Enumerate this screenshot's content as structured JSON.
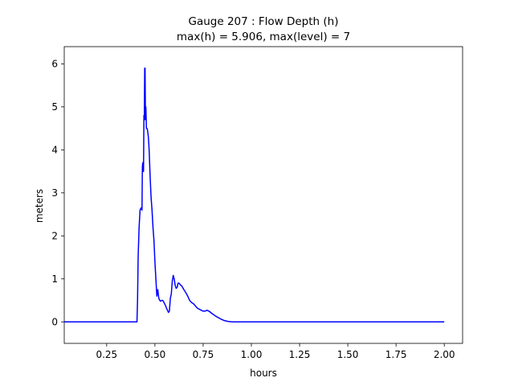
{
  "chart_data": {
    "type": "line",
    "title_line1": "Gauge 207 : Flow Depth (h)",
    "title_line2": "max(h) =   5.906,    max(level) = 7",
    "xlabel": "hours",
    "ylabel": "meters",
    "xlim": [
      0.03,
      2.095
    ],
    "ylim": [
      -0.5,
      6.4
    ],
    "xticks": [
      0.25,
      0.5,
      0.75,
      1.0,
      1.25,
      1.5,
      1.75,
      2.0
    ],
    "xtick_labels": [
      "0.25",
      "0.50",
      "0.75",
      "1.00",
      "1.25",
      "1.50",
      "1.75",
      "2.00"
    ],
    "yticks": [
      0,
      1,
      2,
      3,
      4,
      5,
      6
    ],
    "ytick_labels": [
      "0",
      "1",
      "2",
      "3",
      "4",
      "5",
      "6"
    ],
    "grid": false,
    "series": [
      {
        "color": "#0000ff",
        "x": [
          0.03,
          0.1,
          0.2,
          0.3,
          0.38,
          0.407,
          0.41,
          0.413,
          0.418,
          0.423,
          0.428,
          0.433,
          0.435,
          0.437,
          0.439,
          0.441,
          0.443,
          0.445,
          0.447,
          0.449,
          0.451,
          0.453,
          0.456,
          0.459,
          0.462,
          0.466,
          0.47,
          0.475,
          0.48,
          0.485,
          0.49,
          0.495,
          0.5,
          0.505,
          0.51,
          0.515,
          0.52,
          0.525,
          0.53,
          0.535,
          0.54,
          0.545,
          0.55,
          0.555,
          0.56,
          0.565,
          0.57,
          0.575,
          0.58,
          0.585,
          0.59,
          0.595,
          0.6,
          0.605,
          0.61,
          0.615,
          0.62,
          0.625,
          0.63,
          0.64,
          0.65,
          0.66,
          0.67,
          0.68,
          0.69,
          0.7,
          0.72,
          0.74,
          0.75,
          0.76,
          0.77,
          0.78,
          0.8,
          0.82,
          0.84,
          0.86,
          0.88,
          0.9,
          0.92,
          0.95,
          1.0,
          1.25,
          1.5,
          1.75,
          2.0
        ],
        "values": [
          0,
          0,
          0,
          0,
          0,
          0,
          0.5,
          1.5,
          2.2,
          2.6,
          2.65,
          2.6,
          3.6,
          3.7,
          3.5,
          3.5,
          4.8,
          4.7,
          5.9,
          5.9,
          4.7,
          5.0,
          4.5,
          4.5,
          4.45,
          4.3,
          4.0,
          3.4,
          2.9,
          2.6,
          2.2,
          1.9,
          1.4,
          1.0,
          0.6,
          0.75,
          0.55,
          0.5,
          0.48,
          0.5,
          0.5,
          0.47,
          0.42,
          0.38,
          0.32,
          0.27,
          0.22,
          0.25,
          0.55,
          0.65,
          0.95,
          1.08,
          1.0,
          0.85,
          0.78,
          0.8,
          0.9,
          0.9,
          0.87,
          0.83,
          0.75,
          0.68,
          0.6,
          0.5,
          0.45,
          0.42,
          0.32,
          0.27,
          0.25,
          0.25,
          0.27,
          0.25,
          0.18,
          0.12,
          0.07,
          0.03,
          0.01,
          0,
          0,
          0,
          0,
          0,
          0,
          0,
          0
        ]
      }
    ]
  }
}
